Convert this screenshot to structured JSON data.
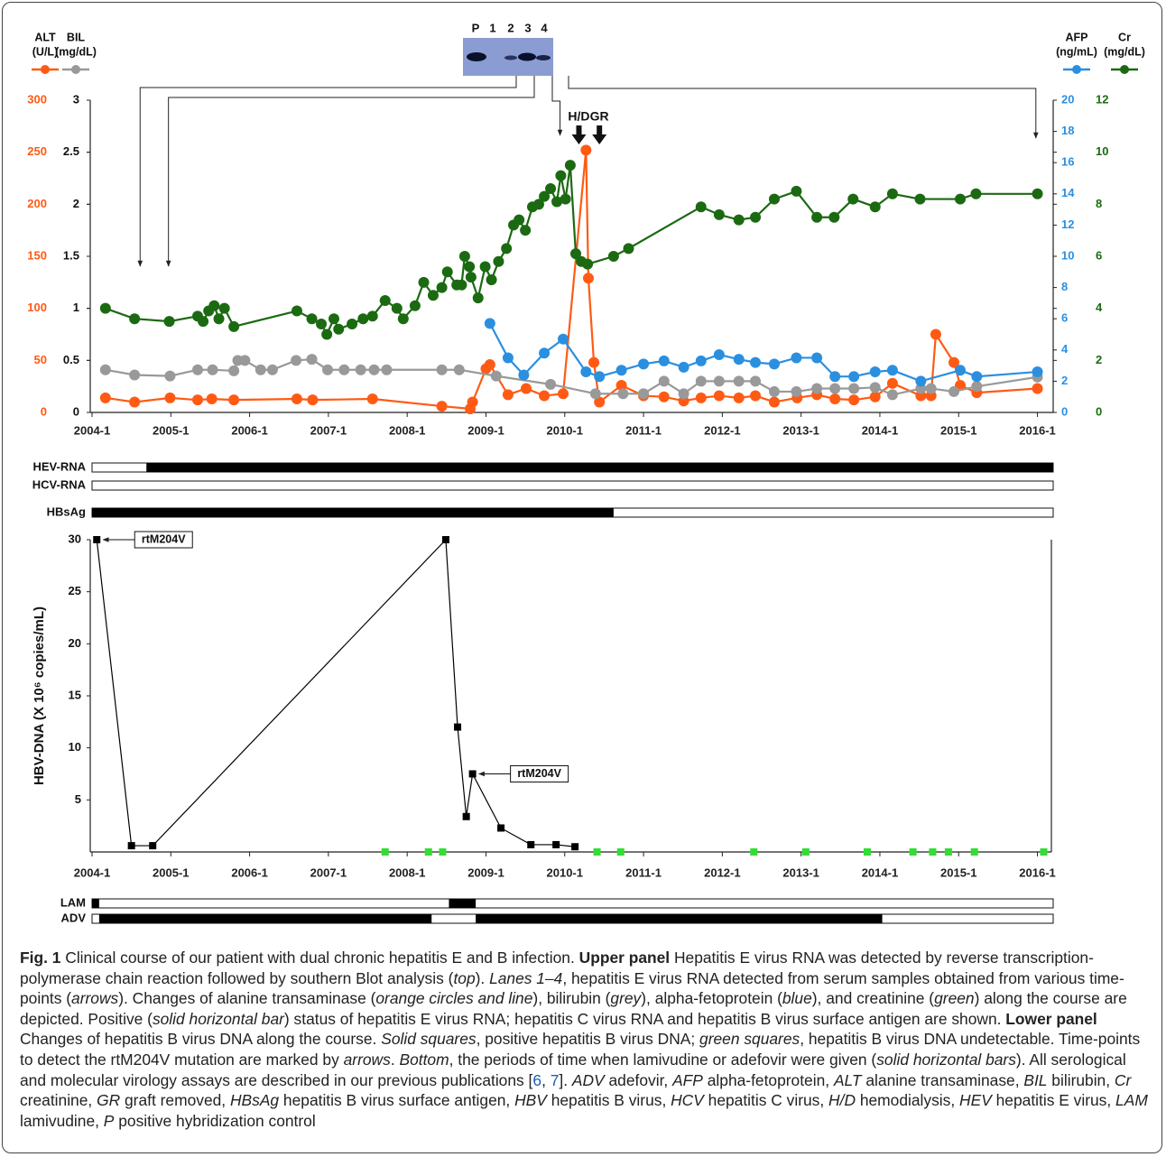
{
  "chart_data": [
    {
      "type": "line",
      "xlim": [
        2004,
        2016.2
      ],
      "xticks": [
        {
          "value": 2004,
          "label": "2004-1"
        },
        {
          "value": 2005,
          "label": "2005-1"
        },
        {
          "value": 2006,
          "label": "2006-1"
        },
        {
          "value": 2007,
          "label": "2007-1"
        },
        {
          "value": 2008,
          "label": "2008-1"
        },
        {
          "value": 2009,
          "label": "2009-1"
        },
        {
          "value": 2010,
          "label": "2010-1"
        },
        {
          "value": 2011,
          "label": "2011-1"
        },
        {
          "value": 2012,
          "label": "2012-1"
        },
        {
          "value": 2013,
          "label": "2013-1"
        },
        {
          "value": 2014,
          "label": "2014-1"
        },
        {
          "value": 2015,
          "label": "2015-1"
        },
        {
          "value": 2016,
          "label": "2016-1"
        }
      ],
      "ylim": [
        0,
        300
      ],
      "yticks": [
        0,
        50,
        100,
        150,
        200,
        250,
        300
      ],
      "y3lim": [
        0,
        3
      ],
      "y3ticks": [
        0,
        0.5,
        1,
        1.5,
        2,
        2.5,
        3
      ],
      "y2lim": [
        0,
        20
      ],
      "y2ticks": [
        0,
        2,
        4,
        6,
        8,
        10,
        12,
        14,
        16,
        18,
        20
      ],
      "y4lim": [
        0,
        12
      ],
      "y4ticks": [
        0,
        2,
        4,
        6,
        8,
        10,
        12
      ],
      "series": [
        {
          "name": "ALT",
          "unit": "(U/L)",
          "color": "#ff5a14",
          "axis": "y",
          "x": [
            2004.17,
            2004.54,
            2004.99,
            2005.34,
            2005.52,
            2005.8,
            2006.6,
            2006.8,
            2007.56,
            2008.44,
            2008.8,
            2008.83,
            2009.0,
            2009.05,
            2009.28,
            2009.51,
            2009.74,
            2009.98,
            2010.27,
            2010.3,
            2010.37,
            2010.44,
            2010.72,
            2011.0,
            2011.26,
            2011.51,
            2011.73,
            2011.96,
            2012.21,
            2012.42,
            2012.66,
            2012.95,
            2013.2,
            2013.43,
            2013.67,
            2013.94,
            2014.16,
            2014.52,
            2014.65,
            2014.71,
            2014.94,
            2015.02,
            2015.23,
            2016.0
          ],
          "values": [
            14,
            10,
            14,
            12,
            13,
            12,
            13,
            12,
            13,
            6,
            3.5,
            10,
            42,
            46,
            17,
            23,
            16,
            18,
            252,
            129,
            48,
            10,
            26,
            16,
            15,
            11,
            14,
            16,
            14,
            16,
            10,
            14,
            17,
            13,
            12,
            15,
            28,
            16,
            16,
            75,
            48,
            26,
            19,
            23
          ]
        },
        {
          "name": "BIL",
          "unit": "(mg/dL)",
          "color": "#999999",
          "axis": "y3",
          "x": [
            2004.17,
            2004.54,
            2004.99,
            2005.34,
            2005.53,
            2005.8,
            2005.85,
            2005.94,
            2006.14,
            2006.29,
            2006.59,
            2006.79,
            2006.99,
            2007.2,
            2007.41,
            2007.58,
            2007.74,
            2008.44,
            2008.66,
            2009.13,
            2009.82,
            2010.39,
            2010.74,
            2011.0,
            2011.26,
            2011.51,
            2011.73,
            2011.96,
            2012.21,
            2012.42,
            2012.66,
            2012.94,
            2013.2,
            2013.43,
            2013.67,
            2013.94,
            2014.16,
            2014.52,
            2014.65,
            2014.94,
            2015.23,
            2016.0
          ],
          "values": [
            0.41,
            0.36,
            0.35,
            0.41,
            0.41,
            0.4,
            0.5,
            0.5,
            0.41,
            0.41,
            0.5,
            0.51,
            0.41,
            0.41,
            0.41,
            0.41,
            0.41,
            0.41,
            0.41,
            0.35,
            0.27,
            0.18,
            0.18,
            0.18,
            0.3,
            0.18,
            0.3,
            0.3,
            0.3,
            0.3,
            0.2,
            0.2,
            0.23,
            0.23,
            0.23,
            0.24,
            0.17,
            0.23,
            0.23,
            0.2,
            0.25,
            0.34
          ]
        },
        {
          "name": "AFP",
          "unit": "(ng/mL)",
          "color": "#2b8fe0",
          "axis": "y2",
          "x": [
            2009.05,
            2009.28,
            2009.48,
            2009.74,
            2009.98,
            2010.27,
            2010.44,
            2010.72,
            2011.0,
            2011.26,
            2011.51,
            2011.73,
            2011.96,
            2012.21,
            2012.42,
            2012.66,
            2012.94,
            2013.2,
            2013.43,
            2013.67,
            2013.94,
            2014.16,
            2014.52,
            2015.02,
            2015.23,
            2016.0
          ],
          "values": [
            5.7,
            3.5,
            2.4,
            3.8,
            4.7,
            2.6,
            2.3,
            2.7,
            3.1,
            3.3,
            2.9,
            3.3,
            3.7,
            3.4,
            3.2,
            3.1,
            3.5,
            3.5,
            2.3,
            2.3,
            2.6,
            2.7,
            2.0,
            2.7,
            2.3,
            2.6
          ]
        },
        {
          "name": "Cr",
          "unit": "(mg/dL)",
          "color": "#1b6a12",
          "axis": "y4",
          "x": [
            2004.17,
            2004.54,
            2004.98,
            2005.34,
            2005.41,
            2005.48,
            2005.55,
            2005.61,
            2005.68,
            2005.8,
            2006.6,
            2006.79,
            2006.91,
            2006.98,
            2007.07,
            2007.13,
            2007.3,
            2007.44,
            2007.56,
            2007.72,
            2007.87,
            2007.95,
            2008.1,
            2008.21,
            2008.33,
            2008.44,
            2008.51,
            2008.63,
            2008.69,
            2008.73,
            2008.79,
            2008.81,
            2008.9,
            2008.99,
            2009.07,
            2009.16,
            2009.26,
            2009.35,
            2009.42,
            2009.5,
            2009.59,
            2009.67,
            2009.74,
            2009.82,
            2009.9,
            2009.95,
            2010.01,
            2010.07,
            2010.14,
            2010.21,
            2010.29,
            2010.62,
            2010.81,
            2011.73,
            2011.96,
            2012.21,
            2012.42,
            2012.66,
            2012.94,
            2013.2,
            2013.42,
            2013.66,
            2013.94,
            2014.16,
            2014.51,
            2015.02,
            2015.22,
            2016.0
          ],
          "values": [
            4.0,
            3.6,
            3.5,
            3.7,
            3.5,
            3.9,
            4.1,
            3.6,
            4.0,
            3.3,
            3.9,
            3.6,
            3.4,
            3.0,
            3.6,
            3.2,
            3.4,
            3.6,
            3.7,
            4.3,
            4.0,
            3.6,
            4.1,
            5.0,
            4.5,
            4.8,
            5.4,
            4.9,
            4.9,
            6.0,
            5.6,
            5.2,
            4.4,
            5.6,
            5.1,
            5.8,
            6.3,
            7.2,
            7.4,
            7.0,
            7.9,
            8.0,
            8.3,
            8.6,
            8.1,
            9.1,
            8.2,
            9.5,
            6.1,
            5.8,
            5.7,
            6.0,
            6.3,
            7.9,
            7.6,
            7.4,
            7.5,
            8.2,
            8.5,
            7.5,
            7.5,
            8.2,
            7.9,
            8.4,
            8.2,
            8.2,
            8.4,
            8.4
          ]
        }
      ],
      "annotations": [
        {
          "text": "H/D",
          "x": 2010.18
        },
        {
          "text": "GR",
          "x": 2010.44
        }
      ]
    },
    {
      "type": "line",
      "y_label": "HBV-DNA (X 10⁶ copies/mL)",
      "xlim": [
        2004,
        2016.2
      ],
      "xticks": [
        {
          "value": 2004,
          "label": "2004-1"
        },
        {
          "value": 2005,
          "label": "2005-1"
        },
        {
          "value": 2006,
          "label": "2006-1"
        },
        {
          "value": 2007,
          "label": "2007-1"
        },
        {
          "value": 2008,
          "label": "2008-1"
        },
        {
          "value": 2009,
          "label": "2009-1"
        },
        {
          "value": 2010,
          "label": "2010-1"
        },
        {
          "value": 2011,
          "label": "2011-1"
        },
        {
          "value": 2012,
          "label": "2012-1"
        },
        {
          "value": 2013,
          "label": "2013-1"
        },
        {
          "value": 2014,
          "label": "2014-1"
        },
        {
          "value": 2015,
          "label": "2015-1"
        },
        {
          "value": 2016,
          "label": "2016-1"
        }
      ],
      "ylim": [
        0,
        30
      ],
      "yticks": [
        5,
        10,
        15,
        20,
        25,
        30
      ],
      "series": [
        {
          "color": "#000000",
          "line": true,
          "x": [
            2004.06,
            2004.5,
            2004.77,
            2008.49,
            2008.64,
            2008.75,
            2008.83,
            2009.19,
            2009.57,
            2009.89,
            2010.13
          ],
          "values": [
            30,
            0.6,
            0.6,
            30,
            12,
            3.4,
            7.5,
            2.3,
            0.7,
            0.7,
            0.5
          ]
        },
        {
          "color": "#33dd33",
          "line": false,
          "x": [
            2007.72,
            2008.27,
            2008.45,
            2010.41,
            2010.71,
            2012.4,
            2013.06,
            2013.84,
            2014.42,
            2014.67,
            2014.87,
            2015.2,
            2016.08
          ],
          "values": [
            0,
            0,
            0,
            0,
            0,
            0,
            0,
            0,
            0,
            0,
            0,
            0,
            0
          ]
        }
      ],
      "annotations": [
        {
          "text": "rtM204V",
          "x": 2004.06,
          "y": 30
        },
        {
          "text": "rtM204V",
          "x": 2008.83,
          "y": 7.5
        }
      ]
    }
  ],
  "blot": {
    "lanes": [
      "P",
      "1",
      "2",
      "3",
      "4"
    ],
    "sample_times": [
      2004.61,
      2004.97,
      2009.94,
      2015.98
    ]
  },
  "status_bars": [
    {
      "label": "HEV-RNA",
      "positive": [
        [
          2004.69,
          2016.2
        ]
      ]
    },
    {
      "label": "HCV-RNA",
      "positive": []
    },
    {
      "label": "HBsAg",
      "positive": [
        [
          2004,
          2010.62
        ]
      ]
    }
  ],
  "treatment_bars": [
    {
      "label": "LAM",
      "positive": [
        [
          2004,
          2004.09
        ],
        [
          2008.53,
          2008.87
        ]
      ]
    },
    {
      "label": "ADV",
      "positive": [
        [
          2004.09,
          2008.31
        ],
        [
          2008.87,
          2014.03
        ]
      ]
    }
  ],
  "caption": [
    {
      "text": "Fig. 1",
      "b": true
    },
    {
      "text": " Clinical course of our patient with dual chronic hepatitis E and B infection. "
    },
    {
      "text": "Upper panel",
      "b": true
    },
    {
      "text": " Hepatitis E virus RNA was detected by reverse transcription-polymerase chain reaction followed by southern Blot analysis ("
    },
    {
      "text": "top",
      "i": true
    },
    {
      "text": "). "
    },
    {
      "text": "Lanes 1–4",
      "i": true
    },
    {
      "text": ", hepatitis E virus RNA detected from serum samples obtained from various time-points ("
    },
    {
      "text": "arrows",
      "i": true
    },
    {
      "text": "). Changes of alanine transaminase ("
    },
    {
      "text": "orange circles and line",
      "i": true
    },
    {
      "text": "), bilirubin ("
    },
    {
      "text": "grey",
      "i": true
    },
    {
      "text": "), alpha-fetoprotein ("
    },
    {
      "text": "blue",
      "i": true
    },
    {
      "text": "), and creatinine ("
    },
    {
      "text": "green",
      "i": true
    },
    {
      "text": ") along the course are depicted. Positive ("
    },
    {
      "text": "solid horizontal bar",
      "i": true
    },
    {
      "text": ") status of hepatitis E virus RNA; hepatitis C virus RNA and hepatitis B virus surface antigen are shown. "
    },
    {
      "text": "Lower panel",
      "b": true
    },
    {
      "text": " Changes of hepatitis B virus DNA along the course. "
    },
    {
      "text": "Solid squares",
      "i": true
    },
    {
      "text": ", positive hepatitis B virus DNA; "
    },
    {
      "text": "green squares",
      "i": true
    },
    {
      "text": ", hepatitis B virus DNA undetectable. Time-points to detect the rtM204V mutation are marked by "
    },
    {
      "text": "arrows",
      "i": true
    },
    {
      "text": ". "
    },
    {
      "text": "Bottom",
      "i": true
    },
    {
      "text": ", the periods of time when lamivudine or adefovir were given ("
    },
    {
      "text": "solid horizontal bars",
      "i": true
    },
    {
      "text": "). All serological and molecular virology assays are described in our previous publications ["
    },
    {
      "text": "6",
      "link": true
    },
    {
      "text": ", "
    },
    {
      "text": "7",
      "link": true
    },
    {
      "text": "]. "
    },
    {
      "text": "ADV",
      "i": true
    },
    {
      "text": " adefovir, "
    },
    {
      "text": "AFP",
      "i": true
    },
    {
      "text": " alpha-fetoprotein, "
    },
    {
      "text": "ALT",
      "i": true
    },
    {
      "text": " alanine transaminase, "
    },
    {
      "text": "BIL",
      "i": true
    },
    {
      "text": " bilirubin, "
    },
    {
      "text": "Cr",
      "i": true
    },
    {
      "text": " creatinine, "
    },
    {
      "text": "GR",
      "i": true
    },
    {
      "text": " graft removed, "
    },
    {
      "text": "HBsAg",
      "i": true
    },
    {
      "text": " hepatitis B virus surface antigen, "
    },
    {
      "text": "HBV",
      "i": true
    },
    {
      "text": " hepatitis B virus, "
    },
    {
      "text": "HCV",
      "i": true
    },
    {
      "text": " hepatitis C virus, "
    },
    {
      "text": "H/D",
      "i": true
    },
    {
      "text": " hemodialysis, "
    },
    {
      "text": "HEV",
      "i": true
    },
    {
      "text": " hepatitis E virus, "
    },
    {
      "text": "LAM",
      "i": true
    },
    {
      "text": " lamivudine, "
    },
    {
      "text": "P",
      "i": true
    },
    {
      "text": " positive hybridization control"
    }
  ]
}
